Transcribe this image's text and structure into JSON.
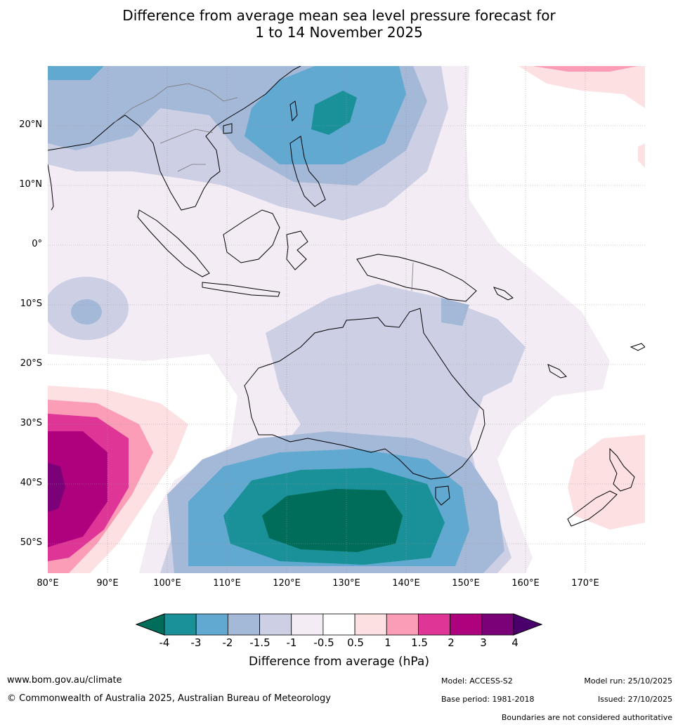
{
  "title_line1": "Difference from average mean sea level pressure forecast for",
  "title_line2": "1 to 14 November 2025",
  "lat_labels": [
    "20°N",
    "10°N",
    "0°",
    "10°S",
    "20°S",
    "30°S",
    "40°S",
    "50°S"
  ],
  "lon_labels": [
    "80°E",
    "90°E",
    "100°E",
    "110°E",
    "120°E",
    "130°E",
    "140°E",
    "150°E",
    "160°E",
    "170°E"
  ],
  "colorbar": {
    "labels": [
      "-4",
      "-3",
      "-2",
      "-1.5",
      "-1",
      "-0.5",
      "0.5",
      "1",
      "1.5",
      "2",
      "3",
      "4"
    ],
    "colors": [
      "#1a9198",
      "#62a9d1",
      "#a4b8d8",
      "#cdcfe5",
      "#f3ecf4",
      "#ffffff",
      "#fde0e1",
      "#fb9db6",
      "#de3596",
      "#ae017e",
      "#7a0177"
    ],
    "low_color": "#006d5a",
    "high_color": "#49006a",
    "title": "Difference from average (hPa)"
  },
  "footer": {
    "website": "www.bom.gov.au/climate",
    "copyright": "© Commonwealth of Australia 2025, Australian Bureau of Meteorology",
    "model": "Model: ACCESS-S2",
    "base_period": "Base period: 1981-2018",
    "model_run": "Model run: 25/10/2025",
    "issued": "Issued: 27/10/2025",
    "boundaries": "Boundaries are not considered authoritative"
  }
}
